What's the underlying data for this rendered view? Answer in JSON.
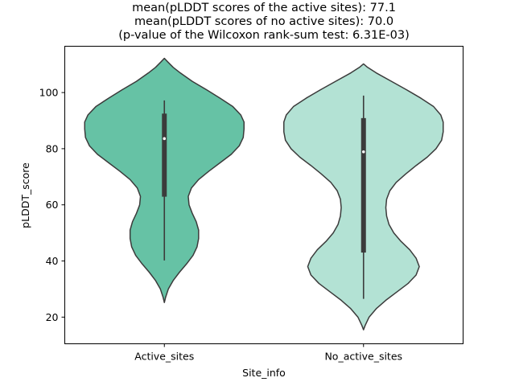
{
  "chart_data": {
    "type": "violin",
    "title": [
      "mean(pLDDT scores of the active sites): 77.1",
      "mean(pLDDT scores of no active sites): 70.0",
      "(p-value of the Wilcoxon rank-sum test: 6.31E-03)"
    ],
    "xlabel": "Site_info",
    "ylabel": "pLDDT_score",
    "categories": [
      "Active_sites",
      "No_active_sites"
    ],
    "ylim": [
      10.5,
      116.5
    ],
    "yticks": [
      20,
      40,
      60,
      80,
      100
    ],
    "grid": false,
    "colors": {
      "Active_sites": "#66c2a5",
      "No_active_sites": "#b3e2d4",
      "outline": "#3b3b3b",
      "box": "#3b3b3b"
    },
    "violins": [
      {
        "category": "Active_sites",
        "min": 25.2,
        "max": 112.2,
        "median": 83.6,
        "q1": 62.9,
        "q3": 92.5,
        "whisker_low": 40.2,
        "whisker_high": 97.2,
        "profile": [
          [
            25.2,
            0.0
          ],
          [
            27,
            0.015
          ],
          [
            30,
            0.05
          ],
          [
            33,
            0.11
          ],
          [
            36,
            0.19
          ],
          [
            39,
            0.28
          ],
          [
            42,
            0.36
          ],
          [
            45,
            0.41
          ],
          [
            48,
            0.43
          ],
          [
            51,
            0.43
          ],
          [
            54,
            0.4
          ],
          [
            57,
            0.35
          ],
          [
            60,
            0.31
          ],
          [
            63,
            0.3
          ],
          [
            66,
            0.34
          ],
          [
            69,
            0.43
          ],
          [
            72,
            0.56
          ],
          [
            75,
            0.7
          ],
          [
            78,
            0.84
          ],
          [
            81,
            0.94
          ],
          [
            84,
            0.99
          ],
          [
            87,
            1.0
          ],
          [
            89.5,
            1.0
          ],
          [
            92,
            0.96
          ],
          [
            95,
            0.86
          ],
          [
            98,
            0.7
          ],
          [
            101,
            0.53
          ],
          [
            104,
            0.35
          ],
          [
            107,
            0.2
          ],
          [
            109,
            0.11
          ],
          [
            111,
            0.04
          ],
          [
            112.2,
            0.0
          ]
        ]
      },
      {
        "category": "No_active_sites",
        "min": 15.5,
        "max": 110.2,
        "median": 78.9,
        "q1": 43.0,
        "q3": 90.9,
        "whisker_low": 26.5,
        "whisker_high": 98.9,
        "profile": [
          [
            15.5,
            0.0
          ],
          [
            17,
            0.02
          ],
          [
            20,
            0.07
          ],
          [
            23,
            0.16
          ],
          [
            26,
            0.28
          ],
          [
            29,
            0.42
          ],
          [
            32,
            0.56
          ],
          [
            35,
            0.66
          ],
          [
            38,
            0.7
          ],
          [
            41,
            0.66
          ],
          [
            44,
            0.58
          ],
          [
            47,
            0.47
          ],
          [
            50,
            0.38
          ],
          [
            53,
            0.32
          ],
          [
            56,
            0.29
          ],
          [
            59,
            0.28
          ],
          [
            62,
            0.29
          ],
          [
            65,
            0.33
          ],
          [
            68,
            0.41
          ],
          [
            71,
            0.53
          ],
          [
            74,
            0.66
          ],
          [
            77,
            0.8
          ],
          [
            80,
            0.91
          ],
          [
            83,
            0.98
          ],
          [
            86,
            1.0
          ],
          [
            89.5,
            1.0
          ],
          [
            92,
            0.97
          ],
          [
            95,
            0.88
          ],
          [
            98,
            0.72
          ],
          [
            101,
            0.54
          ],
          [
            104,
            0.35
          ],
          [
            107,
            0.16
          ],
          [
            109,
            0.05
          ],
          [
            110.2,
            0.0
          ]
        ]
      }
    ]
  }
}
